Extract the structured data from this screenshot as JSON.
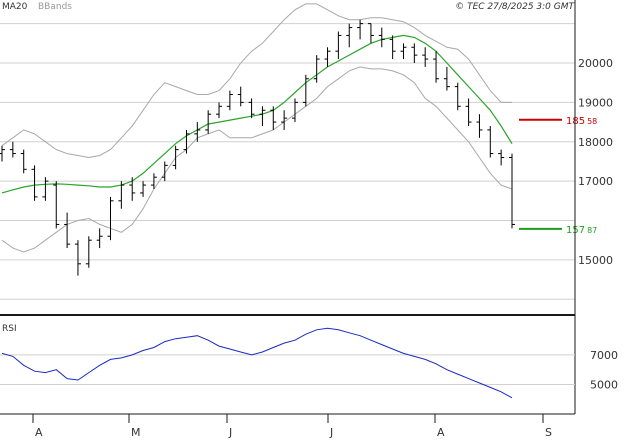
{
  "header": {
    "ma_label": "MA20",
    "bb_label": "BBands",
    "source": "© TEC 27/8/2025 3:0 GMT"
  },
  "rsi": {
    "label": "RSI"
  },
  "colors": {
    "background": "#ffffff",
    "grid": "#d0d0d0",
    "bars": "#000000",
    "ma": "#2aa52a",
    "bbands": "#a8a8a8",
    "rsi": "#1a2bbf",
    "resistance": "#cc0000",
    "support": "#1f9e1f",
    "frame": "#1a1a1a"
  },
  "chart_data": [
    {
      "type": "line",
      "title": "",
      "ylim": [
        13600,
        21600
      ],
      "grid": true,
      "y_tick_labels": [
        {
          "value": 20000,
          "text": "20000"
        },
        {
          "value": 19000,
          "text": "19000"
        },
        {
          "value": 18000,
          "text": "18000"
        },
        {
          "value": 17000,
          "text": "17000"
        },
        {
          "value": 15000,
          "text": "15000"
        }
      ],
      "x_tick_labels": [
        "A",
        "M",
        "J",
        "J",
        "A",
        "S"
      ],
      "series": [
        {
          "name": "MA20",
          "values": [
            16700,
            16780,
            16850,
            16900,
            16920,
            16930,
            16920,
            16900,
            16880,
            16850,
            16850,
            16900,
            17000,
            17200,
            17450,
            17700,
            17950,
            18150,
            18300,
            18450,
            18500,
            18550,
            18600,
            18650,
            18700,
            18800,
            19000,
            19250,
            19500,
            19700,
            19900,
            20050,
            20200,
            20350,
            20500,
            20600,
            20650,
            20700,
            20650,
            20500,
            20300,
            20000,
            19700,
            19400,
            19100,
            18800,
            18400,
            17950
          ]
        },
        {
          "name": "BBands",
          "upper": [
            17900,
            18100,
            18300,
            18200,
            18000,
            17800,
            17700,
            17650,
            17600,
            17650,
            17800,
            18100,
            18400,
            18800,
            19200,
            19500,
            19400,
            19300,
            19200,
            19200,
            19300,
            19600,
            20000,
            20300,
            20500,
            20800,
            21100,
            21350,
            21500,
            21500,
            21350,
            21200,
            21100,
            21100,
            21150,
            21150,
            21100,
            21050,
            20900,
            20700,
            20550,
            20400,
            20350,
            20100,
            19700,
            19300,
            19000,
            19000
          ],
          "lower": [
            15500,
            15300,
            15200,
            15300,
            15500,
            15700,
            15900,
            16000,
            16050,
            15900,
            15800,
            15700,
            15900,
            16300,
            16800,
            17200,
            17600,
            17800,
            18100,
            18200,
            18300,
            18100,
            18100,
            18100,
            18200,
            18300,
            18500,
            18700,
            18900,
            19100,
            19400,
            19600,
            19800,
            19900,
            19850,
            19850,
            19800,
            19700,
            19500,
            19100,
            18900,
            18600,
            18300,
            18000,
            17600,
            17200,
            16900,
            16800
          ]
        },
        {
          "name": "",
          "ohlc": [
            [
              17700,
              17900,
              17500,
              17800
            ],
            [
              17800,
              18000,
              17600,
              17700
            ],
            [
              17700,
              17800,
              17200,
              17300
            ],
            [
              17300,
              17400,
              16500,
              16600
            ],
            [
              16600,
              17100,
              16500,
              17000
            ],
            [
              16900,
              17000,
              15800,
              15900
            ],
            [
              15900,
              16200,
              15300,
              15400
            ],
            [
              15400,
              15500,
              14600,
              14900
            ],
            [
              14900,
              15600,
              14800,
              15500
            ],
            [
              15500,
              15800,
              15300,
              15600
            ],
            [
              15600,
              16600,
              15500,
              16500
            ],
            [
              16500,
              17000,
              16300,
              16900
            ],
            [
              16900,
              17100,
              16500,
              16700
            ],
            [
              16700,
              17000,
              16600,
              16900
            ],
            [
              16900,
              17200,
              16800,
              17100
            ],
            [
              17100,
              17500,
              17000,
              17400
            ],
            [
              17400,
              17900,
              17300,
              17800
            ],
            [
              17800,
              18300,
              17700,
              18200
            ],
            [
              18200,
              18500,
              18000,
              18300
            ],
            [
              18300,
              18800,
              18200,
              18700
            ],
            [
              18700,
              19000,
              18600,
              18900
            ],
            [
              18900,
              19300,
              18800,
              19200
            ],
            [
              19200,
              19400,
              18900,
              19000
            ],
            [
              19000,
              19100,
              18600,
              18700
            ],
            [
              18700,
              18900,
              18400,
              18800
            ],
            [
              18800,
              18900,
              18300,
              18500
            ],
            [
              18500,
              18800,
              18300,
              18600
            ],
            [
              18600,
              19100,
              18500,
              19000
            ],
            [
              19000,
              19700,
              18900,
              19600
            ],
            [
              19600,
              20200,
              19500,
              20100
            ],
            [
              20100,
              20400,
              19900,
              20300
            ],
            [
              20300,
              20800,
              20100,
              20700
            ],
            [
              20700,
              21000,
              20400,
              20900
            ],
            [
              20900,
              21100,
              20600,
              21000
            ],
            [
              21000,
              21000,
              20500,
              20700
            ],
            [
              20700,
              20900,
              20400,
              20600
            ],
            [
              20600,
              20700,
              20100,
              20300
            ],
            [
              20300,
              20500,
              20100,
              20400
            ],
            [
              20400,
              20500,
              20000,
              20200
            ],
            [
              20200,
              20400,
              19900,
              20100
            ],
            [
              20100,
              20300,
              19500,
              19600
            ],
            [
              19600,
              19900,
              19300,
              19400
            ],
            [
              19400,
              19500,
              18800,
              18900
            ],
            [
              18900,
              19100,
              18400,
              18500
            ],
            [
              18500,
              18700,
              18100,
              18300
            ],
            [
              18300,
              18400,
              17600,
              17700
            ],
            [
              17700,
              17800,
              17400,
              17600
            ],
            [
              17600,
              17700,
              15800,
              15900
            ]
          ]
        },
        {
          "name": "",
          "level": 18558,
          "color": "#cc0000",
          "label_main": "185",
          "label_sub": "58"
        },
        {
          "name": "",
          "level": 15787,
          "color": "#1f9e1f",
          "label_main": "157",
          "label_sub": "87"
        }
      ]
    },
    {
      "type": "line",
      "title": "",
      "ylim": [
        3000,
        9500
      ],
      "y_tick_labels": [
        {
          "value": 7000,
          "text": "7000"
        },
        {
          "value": 5000,
          "text": "5000"
        }
      ],
      "series": [
        {
          "name": "RSI",
          "values": [
            7100,
            6900,
            6300,
            5900,
            5800,
            6000,
            5400,
            5300,
            5800,
            6300,
            6700,
            6800,
            7000,
            7300,
            7500,
            7900,
            8100,
            8200,
            8300,
            8000,
            7600,
            7400,
            7200,
            7000,
            7200,
            7500,
            7800,
            8000,
            8400,
            8700,
            8800,
            8700,
            8500,
            8300,
            8000,
            7700,
            7400,
            7100,
            6900,
            6700,
            6400,
            6000,
            5700,
            5400,
            5100,
            4800,
            4500,
            4100
          ]
        }
      ]
    }
  ]
}
